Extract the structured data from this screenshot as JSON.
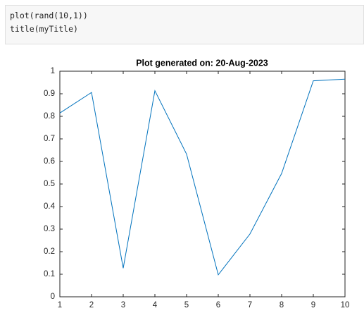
{
  "code": {
    "lines": [
      "plot(rand(10,1))",
      "title(myTitle)"
    ]
  },
  "chart_data": {
    "type": "line",
    "title": "Plot generated on: 20-Aug-2023",
    "x": [
      1,
      2,
      3,
      4,
      5,
      6,
      7,
      8,
      9,
      10
    ],
    "values": [
      0.8147,
      0.9058,
      0.127,
      0.9134,
      0.6324,
      0.0975,
      0.2785,
      0.5469,
      0.9575,
      0.9649
    ],
    "color": "#0072bd",
    "xlim": [
      1,
      10
    ],
    "xticks": [
      1,
      2,
      3,
      4,
      5,
      6,
      7,
      8,
      9,
      10
    ],
    "ylim": [
      0,
      1
    ],
    "yticks": [
      0,
      0.1,
      0.2,
      0.3,
      0.4,
      0.5,
      0.6,
      0.7,
      0.8,
      0.9,
      1
    ],
    "grid": false
  }
}
